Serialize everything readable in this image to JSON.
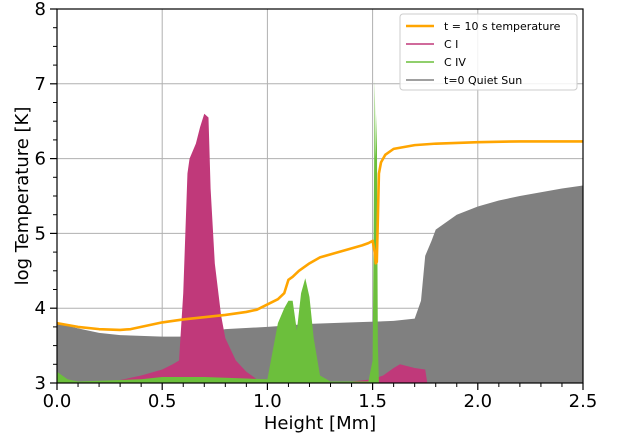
{
  "chart_data": {
    "type": "area",
    "xlabel": "Height [Mm]",
    "ylabel": "log Temperature [K]",
    "xlim": [
      0.0,
      2.5
    ],
    "ylim": [
      3,
      8
    ],
    "grid": true,
    "legend_position": "top-right",
    "x_ticks": [
      "0.0",
      "0.5",
      "1.0",
      "1.5",
      "2.0",
      "2.5"
    ],
    "y_ticks": [
      "3",
      "4",
      "5",
      "6",
      "7",
      "8"
    ],
    "series": [
      {
        "name": "t = 10 s temperature",
        "kind": "line",
        "color": "#ffa500",
        "points": [
          [
            0.0,
            3.8
          ],
          [
            0.1,
            3.75
          ],
          [
            0.2,
            3.72
          ],
          [
            0.3,
            3.71
          ],
          [
            0.35,
            3.72
          ],
          [
            0.45,
            3.78
          ],
          [
            0.5,
            3.81
          ],
          [
            0.6,
            3.85
          ],
          [
            0.7,
            3.88
          ],
          [
            0.8,
            3.91
          ],
          [
            0.9,
            3.95
          ],
          [
            0.95,
            3.98
          ],
          [
            1.0,
            4.05
          ],
          [
            1.05,
            4.12
          ],
          [
            1.08,
            4.2
          ],
          [
            1.1,
            4.38
          ],
          [
            1.12,
            4.42
          ],
          [
            1.15,
            4.5
          ],
          [
            1.2,
            4.6
          ],
          [
            1.25,
            4.68
          ],
          [
            1.3,
            4.72
          ],
          [
            1.35,
            4.76
          ],
          [
            1.4,
            4.8
          ],
          [
            1.45,
            4.84
          ],
          [
            1.48,
            4.87
          ],
          [
            1.5,
            4.9
          ],
          [
            1.51,
            4.75
          ],
          [
            1.515,
            4.6
          ],
          [
            1.52,
            4.62
          ],
          [
            1.525,
            5.2
          ],
          [
            1.53,
            5.8
          ],
          [
            1.54,
            5.95
          ],
          [
            1.56,
            6.05
          ],
          [
            1.6,
            6.13
          ],
          [
            1.7,
            6.18
          ],
          [
            1.8,
            6.2
          ],
          [
            2.0,
            6.22
          ],
          [
            2.2,
            6.23
          ],
          [
            2.5,
            6.23
          ]
        ]
      },
      {
        "name": "C I",
        "kind": "area",
        "color": "#c0397a",
        "points": [
          [
            0.0,
            3.02
          ],
          [
            0.2,
            3.0
          ],
          [
            0.3,
            3.04
          ],
          [
            0.4,
            3.1
          ],
          [
            0.5,
            3.18
          ],
          [
            0.55,
            3.25
          ],
          [
            0.58,
            3.3
          ],
          [
            0.6,
            4.2
          ],
          [
            0.62,
            5.8
          ],
          [
            0.63,
            6.0
          ],
          [
            0.66,
            6.2
          ],
          [
            0.68,
            6.42
          ],
          [
            0.7,
            6.6
          ],
          [
            0.72,
            6.55
          ],
          [
            0.73,
            5.6
          ],
          [
            0.75,
            4.6
          ],
          [
            0.78,
            3.9
          ],
          [
            0.8,
            3.6
          ],
          [
            0.85,
            3.3
          ],
          [
            0.9,
            3.15
          ],
          [
            0.95,
            3.05
          ],
          [
            1.0,
            3.02
          ],
          [
            1.2,
            3.02
          ],
          [
            1.4,
            3.02
          ],
          [
            1.5,
            3.05
          ],
          [
            1.55,
            3.1
          ],
          [
            1.6,
            3.2
          ],
          [
            1.63,
            3.25
          ],
          [
            1.7,
            3.2
          ],
          [
            1.75,
            3.18
          ],
          [
            1.76,
            3.0
          ]
        ]
      },
      {
        "name": "C IV",
        "kind": "area",
        "color": "#6cbf3c",
        "points": [
          [
            0.0,
            3.15
          ],
          [
            0.05,
            3.05
          ],
          [
            0.1,
            3.02
          ],
          [
            0.4,
            3.05
          ],
          [
            0.5,
            3.08
          ],
          [
            0.7,
            3.08
          ],
          [
            0.9,
            3.06
          ],
          [
            1.0,
            3.05
          ],
          [
            1.05,
            3.8
          ],
          [
            1.08,
            4.0
          ],
          [
            1.1,
            4.1
          ],
          [
            1.12,
            4.1
          ],
          [
            1.14,
            3.7
          ],
          [
            1.16,
            4.2
          ],
          [
            1.18,
            4.4
          ],
          [
            1.2,
            4.15
          ],
          [
            1.22,
            3.6
          ],
          [
            1.25,
            3.1
          ],
          [
            1.3,
            3.02
          ],
          [
            1.48,
            3.02
          ],
          [
            1.5,
            3.3
          ],
          [
            1.505,
            5.0
          ],
          [
            1.51,
            7.05
          ],
          [
            1.515,
            6.0
          ],
          [
            1.52,
            6.6
          ],
          [
            1.525,
            3.5
          ],
          [
            1.53,
            3.02
          ]
        ]
      },
      {
        "name": "t=0 Quiet Sun",
        "kind": "area",
        "color": "#808080",
        "base": 3.0,
        "points": [
          [
            0.0,
            3.8
          ],
          [
            0.1,
            3.73
          ],
          [
            0.2,
            3.67
          ],
          [
            0.3,
            3.64
          ],
          [
            0.4,
            3.63
          ],
          [
            0.5,
            3.62
          ],
          [
            0.6,
            3.62
          ],
          [
            0.8,
            3.72
          ],
          [
            1.0,
            3.75
          ],
          [
            1.2,
            3.79
          ],
          [
            1.4,
            3.81
          ],
          [
            1.6,
            3.83
          ],
          [
            1.7,
            3.86
          ],
          [
            1.73,
            4.1
          ],
          [
            1.75,
            4.7
          ],
          [
            1.78,
            4.9
          ],
          [
            1.8,
            5.05
          ],
          [
            1.9,
            5.25
          ],
          [
            2.0,
            5.36
          ],
          [
            2.1,
            5.44
          ],
          [
            2.2,
            5.5
          ],
          [
            2.3,
            5.55
          ],
          [
            2.4,
            5.6
          ],
          [
            2.5,
            5.64
          ]
        ]
      }
    ],
    "legend_order": [
      "t = 10 s temperature",
      "C I",
      "C IV",
      "t=0 Quiet Sun"
    ]
  }
}
